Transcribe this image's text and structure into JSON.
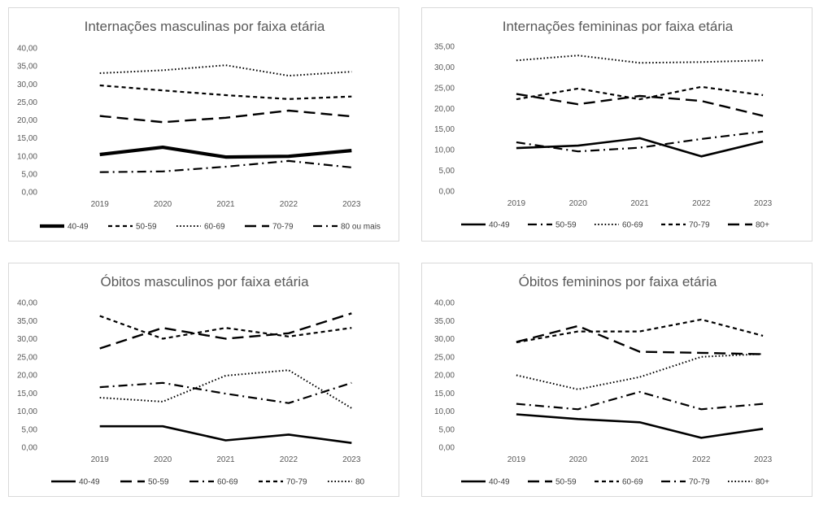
{
  "chart_data": [
    {
      "type": "line",
      "title": "Internações masculinas por faixa etária",
      "categories": [
        "2019",
        "2020",
        "2021",
        "2022",
        "2023"
      ],
      "ylim": [
        0,
        40
      ],
      "yticks": [
        "0,00",
        "5,00",
        "10,00",
        "15,00",
        "20,00",
        "25,00",
        "30,00",
        "35,00",
        "40,00"
      ],
      "legend_position": "bottom",
      "series": [
        {
          "name": "40-49",
          "values": [
            10.4,
            12.4,
            9.7,
            9.9,
            11.5
          ],
          "style": "thick-solid"
        },
        {
          "name": "50-59",
          "values": [
            29.6,
            28.2,
            26.9,
            25.8,
            26.5
          ],
          "style": "short-dash"
        },
        {
          "name": "60-69",
          "values": [
            33.0,
            33.8,
            35.2,
            32.3,
            33.4
          ],
          "style": "dotted"
        },
        {
          "name": "70-79",
          "values": [
            21.1,
            19.4,
            20.6,
            22.6,
            21.0
          ],
          "style": "long-dash"
        },
        {
          "name": "80 ou mais",
          "values": [
            5.5,
            5.7,
            7.0,
            8.6,
            6.8
          ],
          "style": "dash-dot"
        }
      ]
    },
    {
      "type": "line",
      "title": "Internações femininas por faixa etária",
      "categories": [
        "2019",
        "2020",
        "2021",
        "2022",
        "2023"
      ],
      "ylim": [
        0,
        35
      ],
      "yticks": [
        "0,00",
        "5,00",
        "10,00",
        "15,00",
        "20,00",
        "25,00",
        "30,00",
        "35,00"
      ],
      "legend_position": "bottom",
      "series": [
        {
          "name": "40-49",
          "values": [
            10.4,
            11.0,
            12.8,
            8.4,
            12.0
          ],
          "style": "solid"
        },
        {
          "name": "50-59",
          "values": [
            11.8,
            9.6,
            10.5,
            12.6,
            14.4
          ],
          "style": "dash-dot"
        },
        {
          "name": "60-69",
          "values": [
            31.6,
            32.8,
            31.0,
            31.2,
            31.6
          ],
          "style": "dotted"
        },
        {
          "name": "70-79",
          "values": [
            22.2,
            24.8,
            22.2,
            25.2,
            23.2
          ],
          "style": "short-dash"
        },
        {
          "name": "80+",
          "values": [
            23.5,
            21.0,
            23.0,
            21.8,
            18.2
          ],
          "style": "long-dash"
        }
      ]
    },
    {
      "type": "line",
      "title": "Óbitos masculinos por faixa etária",
      "categories": [
        "2019",
        "2020",
        "2021",
        "2022",
        "2023"
      ],
      "ylim": [
        0,
        40
      ],
      "yticks": [
        "0,00",
        "5,00",
        "10,00",
        "15,00",
        "20,00",
        "25,00",
        "30,00",
        "35,00",
        "40,00"
      ],
      "legend_position": "bottom",
      "series": [
        {
          "name": "40-49",
          "values": [
            5.8,
            5.8,
            1.9,
            3.5,
            1.2
          ],
          "style": "solid"
        },
        {
          "name": "50-59",
          "values": [
            27.3,
            33.0,
            30.0,
            31.5,
            37.0
          ],
          "style": "long-dash"
        },
        {
          "name": "60-69",
          "values": [
            16.6,
            17.8,
            14.8,
            12.2,
            17.8
          ],
          "style": "dash-dot"
        },
        {
          "name": "70-79",
          "values": [
            36.3,
            30.0,
            33.0,
            30.6,
            33.0
          ],
          "style": "short-dash"
        },
        {
          "name": "80",
          "values": [
            13.7,
            12.6,
            19.8,
            21.3,
            10.8
          ],
          "style": "dotted"
        }
      ]
    },
    {
      "type": "line",
      "title": "Óbitos femininos por faixa etária",
      "categories": [
        "2019",
        "2020",
        "2021",
        "2022",
        "2023"
      ],
      "ylim": [
        0,
        40
      ],
      "yticks": [
        "0,00",
        "5,00",
        "10,00",
        "15,00",
        "20,00",
        "25,00",
        "30,00",
        "35,00",
        "40,00"
      ],
      "legend_position": "bottom",
      "series": [
        {
          "name": "40-49",
          "values": [
            9.1,
            7.8,
            6.9,
            2.6,
            5.1
          ],
          "style": "solid"
        },
        {
          "name": "50-59",
          "values": [
            29.1,
            33.5,
            26.4,
            26.1,
            25.7
          ],
          "style": "long-dash"
        },
        {
          "name": "60-69",
          "values": [
            29.0,
            32.0,
            32.0,
            35.3,
            30.8
          ],
          "style": "short-dash"
        },
        {
          "name": "70-79",
          "values": [
            12.0,
            10.5,
            15.3,
            10.5,
            12.0
          ],
          "style": "dash-dot"
        },
        {
          "name": "80+",
          "values": [
            19.9,
            16.0,
            19.4,
            25.0,
            25.8
          ],
          "style": "dotted"
        }
      ]
    }
  ]
}
